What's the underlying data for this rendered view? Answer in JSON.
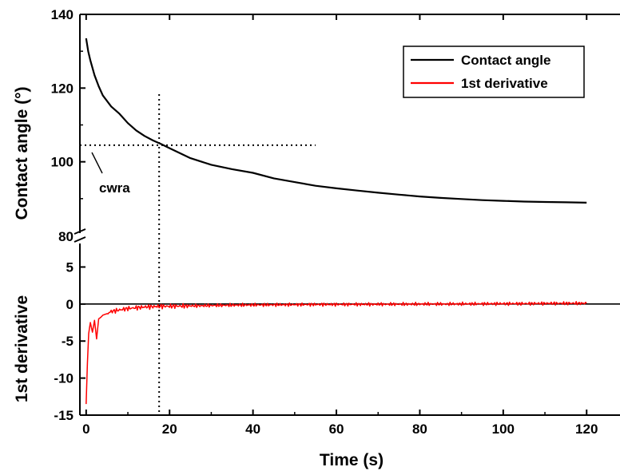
{
  "chart_data": {
    "type": "line",
    "title": "",
    "xlabel": "Time (s)",
    "xlim": [
      -1.5,
      128
    ],
    "x_ticks": [
      0,
      20,
      40,
      60,
      80,
      100,
      120
    ],
    "panels": [
      {
        "name": "top",
        "ylabel": "Contact angle (°)",
        "ylim": [
          80,
          140
        ],
        "y_ticks": [
          100,
          120,
          140
        ],
        "y_tick_broken": "80",
        "series": [
          {
            "name": "Contact angle",
            "color": "#000000",
            "x": [
              0,
              0.5,
              1,
              2,
              3,
              4,
              6,
              8,
              10,
              12,
              14,
              16,
              18,
              20,
              25,
              30,
              35,
              40,
              45,
              50,
              55,
              60,
              65,
              70,
              75,
              80,
              85,
              90,
              95,
              100,
              105,
              110,
              115,
              120
            ],
            "y": [
              133.5,
              130,
              127.5,
              123.5,
              120.5,
              118,
              115,
              113,
              110.5,
              108.5,
              107,
              105.8,
              104.8,
              103.7,
              101,
              99.2,
              98,
              97,
              95.5,
              94.5,
              93.5,
              92.8,
              92.2,
              91.6,
              91.1,
              90.6,
              90.2,
              89.9,
              89.6,
              89.4,
              89.2,
              89.1,
              89.0,
              88.9
            ]
          }
        ]
      },
      {
        "name": "bottom",
        "ylabel": "1st derivative",
        "ylim": [
          -15,
          8.5
        ],
        "y_ticks": [
          -15,
          -10,
          -5,
          0,
          5
        ],
        "y_tick_broken": "80",
        "zero_line": true,
        "series": [
          {
            "name": "1st derivative",
            "color": "#ff0000",
            "x": [
              0,
              0.3,
              0.6,
              1,
              1.5,
              2,
              2.5,
              3,
              3.5,
              4,
              5,
              6,
              7,
              8,
              9,
              10,
              12,
              14,
              16,
              18,
              20,
              25,
              30,
              35,
              40,
              45,
              50,
              55,
              60,
              65,
              70,
              75,
              80,
              85,
              90,
              95,
              100,
              105,
              110,
              115,
              120
            ],
            "y": [
              -13.5,
              -8,
              -4,
              -2.5,
              -3.8,
              -2.2,
              -4.7,
              -2.0,
              -1.8,
              -1.5,
              -1.3,
              -1.0,
              -0.9,
              -0.8,
              -0.7,
              -0.6,
              -0.5,
              -0.4,
              -0.35,
              -0.3,
              -0.3,
              -0.25,
              -0.2,
              -0.15,
              -0.12,
              -0.1,
              -0.08,
              -0.06,
              -0.05,
              -0.04,
              -0.03,
              -0.02,
              0.0,
              0.0,
              0.02,
              0.03,
              0.05,
              0.06,
              0.08,
              0.1,
              0.1
            ]
          }
        ]
      }
    ],
    "legend": {
      "placement": "top-right",
      "entries": [
        {
          "label": "Contact angle",
          "color": "#000000"
        },
        {
          "label": "1st derivative",
          "color": "#ff0000"
        }
      ]
    },
    "annotations": [
      {
        "text": "cwra",
        "x": 0,
        "y": 104.5
      },
      {
        "type": "vline",
        "x": 17.5
      },
      {
        "type": "hline",
        "y": 104.5,
        "x_start": -1.5,
        "x_end": 55
      }
    ]
  }
}
